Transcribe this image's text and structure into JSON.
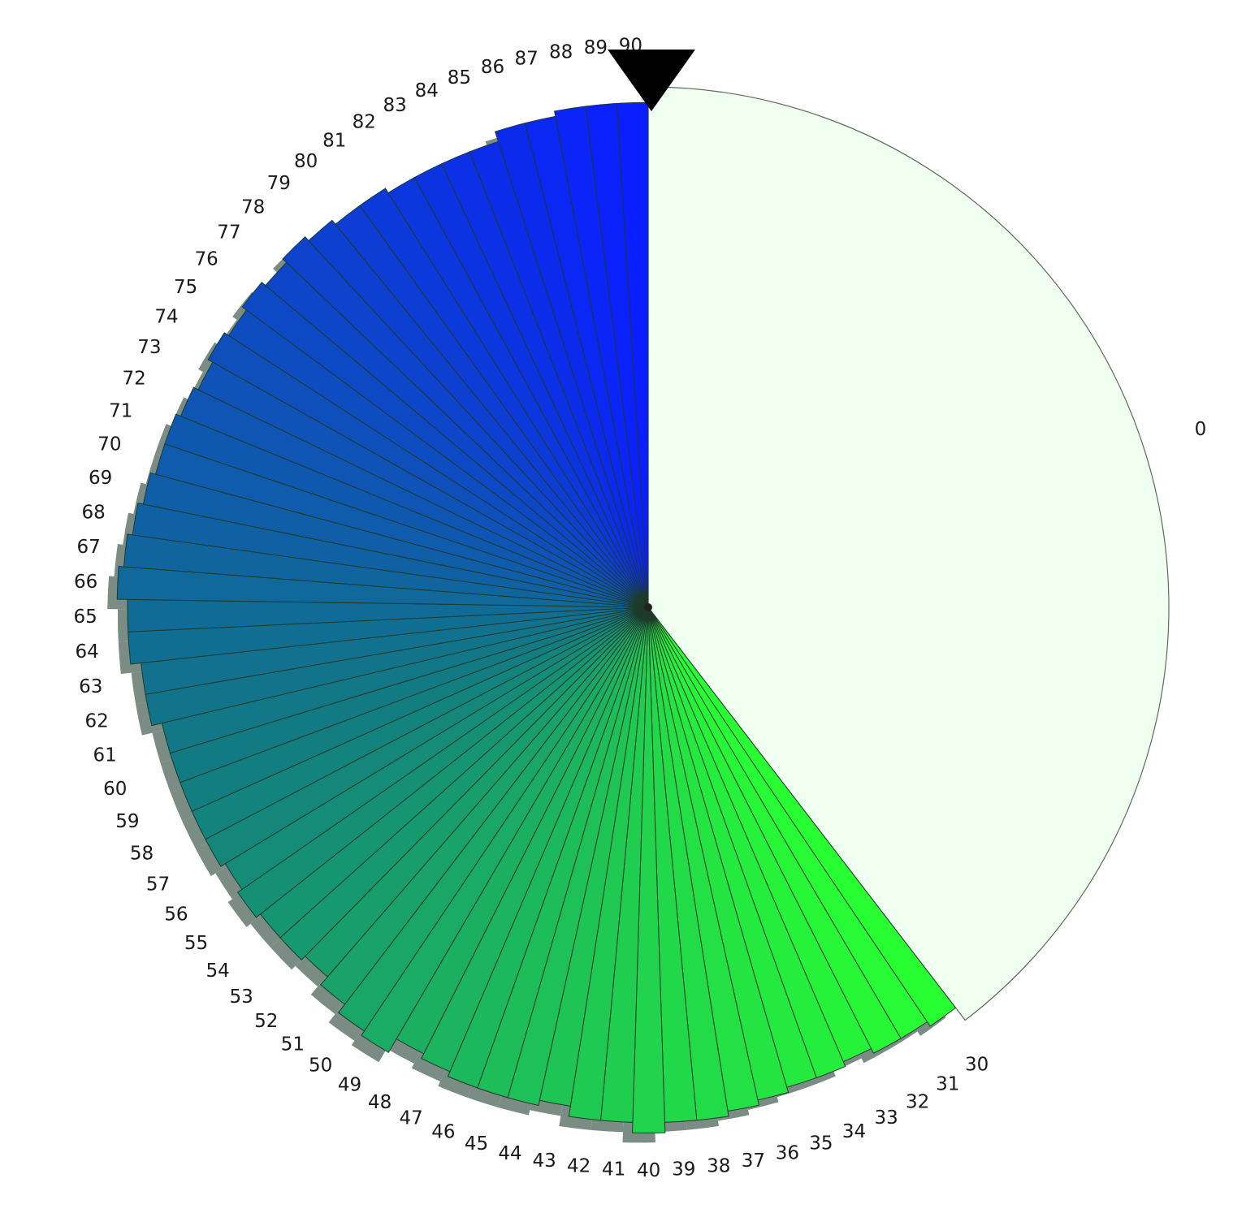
{
  "chart_data": {
    "type": "pie",
    "title": "",
    "start_angle_deg": 90,
    "direction": "clockwise",
    "main_slice": {
      "label": "0",
      "color": "#effff0",
      "edge_color": "#5c6b5c"
    },
    "wedge_labels": [
      "30",
      "31",
      "32",
      "33",
      "34",
      "35",
      "36",
      "37",
      "38",
      "39",
      "40",
      "41",
      "42",
      "43",
      "44",
      "45",
      "46",
      "47",
      "48",
      "49",
      "50",
      "51",
      "52",
      "53",
      "54",
      "55",
      "56",
      "57",
      "58",
      "59",
      "60",
      "61",
      "62",
      "63",
      "64",
      "65",
      "66",
      "67",
      "68",
      "69",
      "70",
      "71",
      "72",
      "73",
      "74",
      "75",
      "76",
      "77",
      "78",
      "79",
      "80",
      "81",
      "82",
      "83",
      "84",
      "85",
      "86",
      "87",
      "88",
      "89",
      "90"
    ],
    "wedge_radius_pct": [
      97,
      96,
      96,
      95,
      96,
      96,
      97,
      98,
      99,
      99,
      101,
      99,
      99,
      97,
      98,
      98,
      98,
      97,
      96,
      99,
      98,
      96,
      94,
      95,
      95,
      96,
      95,
      96,
      96,
      96,
      96,
      96,
      98,
      98,
      100,
      100,
      102,
      101,
      100,
      99,
      98,
      98,
      97,
      96,
      97,
      96,
      97,
      96,
      97,
      96,
      95,
      95,
      94,
      94,
      94,
      94,
      96,
      96,
      97,
      97,
      97
    ],
    "shadow": true,
    "start_color": "#28ff32",
    "end_color": "#0a1eff",
    "mid_color": "#127a82",
    "edge_color": "#1e3a2a",
    "shadow_color": "#7a8c84",
    "marker": "triangle-down",
    "marker_color": "#000000"
  }
}
